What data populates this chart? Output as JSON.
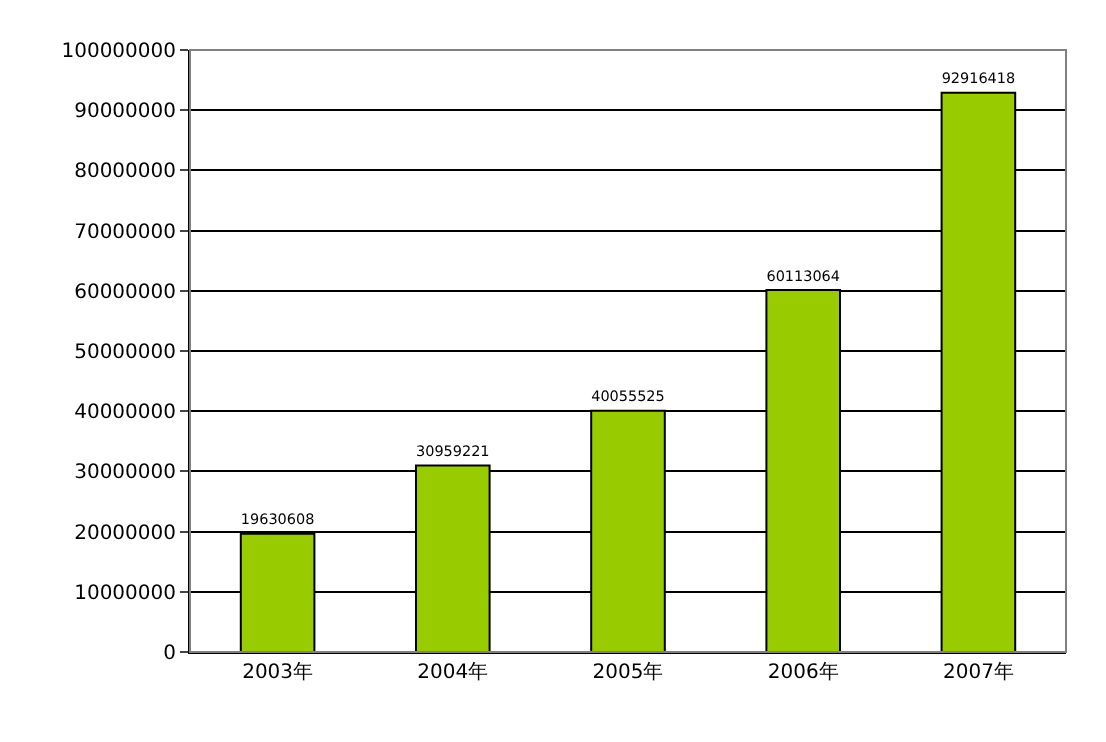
{
  "chart_data": {
    "type": "bar",
    "categories": [
      "2003年",
      "2004年",
      "2005年",
      "2006年",
      "2007年"
    ],
    "values": [
      19630608,
      30959221,
      40055525,
      60113064,
      92916418
    ],
    "color": "#99cc00",
    "ylim": [
      0,
      100000000
    ],
    "yticks": [
      0,
      10000000,
      20000000,
      30000000,
      40000000,
      50000000,
      60000000,
      70000000,
      80000000,
      90000000,
      100000000
    ],
    "grid": "y",
    "data_labels": true
  }
}
